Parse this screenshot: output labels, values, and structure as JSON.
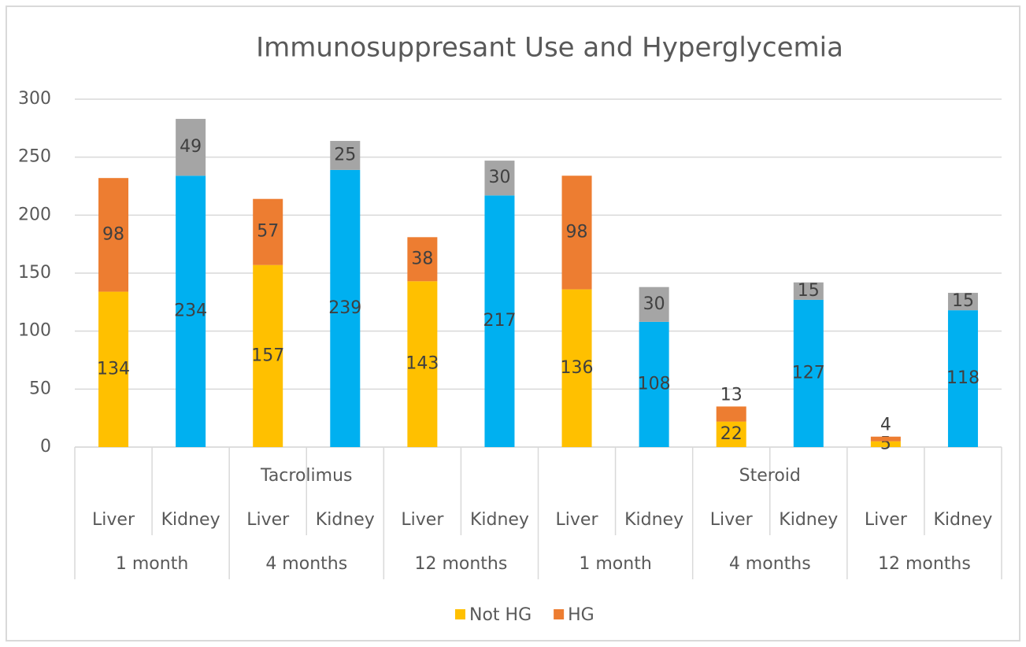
{
  "chart_data": {
    "type": "stacked_bar",
    "title": "Immunosuppresant Use and Hyperglycemia",
    "categories": [
      "Liver",
      "Kidney",
      "Liver",
      "Kidney",
      "Liver",
      "Kidney",
      "Liver",
      "Kidney",
      "Liver",
      "Kidney",
      "Liver",
      "Kidney"
    ],
    "category_levels": [
      {
        "labels": [
          "1 month",
          "4 months",
          "12 months",
          "1 month",
          "4 months",
          "12 months"
        ]
      },
      {
        "labels": [
          "Tacrolimus",
          "Steroid"
        ]
      }
    ],
    "series": [
      {
        "name": "Not HG",
        "color": "#FFC000",
        "colors": [
          "#FFC000",
          "#00B0F0",
          "#FFC000",
          "#00B0F0",
          "#FFC000",
          "#00B0F0",
          "#FFC000",
          "#00B0F0",
          "#FFC000",
          "#00B0F0",
          "#FFC000",
          "#00B0F0"
        ],
        "values": [
          134,
          234,
          157,
          239,
          143,
          217,
          136,
          108,
          22,
          127,
          5,
          118
        ]
      },
      {
        "name": "HG",
        "color": "#ED7D31",
        "colors": [
          "#ED7D31",
          "#A5A5A5",
          "#ED7D31",
          "#A5A5A5",
          "#ED7D31",
          "#A5A5A5",
          "#ED7D31",
          "#A5A5A5",
          "#ED7D31",
          "#A5A5A5",
          "#ED7D31",
          "#A5A5A5"
        ],
        "values": [
          98,
          49,
          57,
          25,
          38,
          30,
          98,
          30,
          13,
          15,
          4,
          15
        ]
      }
    ],
    "ylim": [
      0,
      300
    ],
    "yticks": [
      0,
      50,
      100,
      150,
      200,
      250,
      300
    ],
    "grid": true,
    "legend": "bottom"
  }
}
